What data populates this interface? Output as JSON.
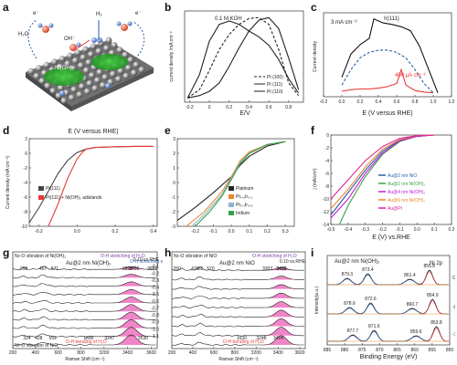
{
  "panel_labels": {
    "a": "a",
    "b": "b",
    "c": "c",
    "d": "d",
    "e": "e",
    "f": "f",
    "g": "g",
    "h": "h",
    "i": "i"
  },
  "panel_a": {
    "labels": [
      "H₂",
      "H₂O",
      "OH⁻",
      "Ni(OH)₂",
      "e⁻",
      "e⁻"
    ]
  },
  "colors": {
    "red": "#e83a36",
    "blue": "#2a5ea8",
    "pink": "#e0239a",
    "purple": "#7b3fa8",
    "green": "#3aa04a",
    "magenta": "#c21dd0",
    "orange": "#e8872c",
    "lightblue": "#8fb3d6",
    "gray": "#777777"
  },
  "chart_data": [
    {
      "id": "b",
      "type": "line",
      "annotation": "0.1 M KOH",
      "xlabel": "E/V",
      "ylabel": "current density /mA cm⁻²",
      "xlim": [
        -0.25,
        0.95
      ],
      "xticks": [
        "-0.2",
        "0",
        "0.2",
        "0.4",
        "0.6",
        "0.8"
      ],
      "series": [
        {
          "name": "Pt (100)",
          "style": "dashed",
          "x": [
            -0.22,
            -0.1,
            0.0,
            0.1,
            0.2,
            0.3,
            0.4,
            0.5,
            0.6,
            0.7,
            0.8,
            0.9
          ],
          "y": [
            0.02,
            0.12,
            0.35,
            0.6,
            0.78,
            0.9,
            0.97,
            0.98,
            0.9,
            0.6,
            0.2,
            0.05
          ]
        },
        {
          "name": "Pt (111)",
          "style": "solid",
          "x": [
            -0.22,
            -0.1,
            0.0,
            0.1,
            0.2,
            0.3,
            0.4,
            0.5,
            0.6,
            0.7,
            0.8,
            0.9
          ],
          "y": [
            0.02,
            0.05,
            0.1,
            0.2,
            0.4,
            0.62,
            0.82,
            0.95,
            0.98,
            0.85,
            0.5,
            0.12
          ]
        },
        {
          "name": "Pt (110)",
          "style": "solid",
          "x": [
            -0.22,
            -0.1,
            0.0,
            0.1,
            0.2,
            0.3,
            0.4,
            0.5,
            0.6,
            0.7,
            0.8,
            0.9
          ],
          "y": [
            0.02,
            0.3,
            0.7,
            0.9,
            0.94,
            0.9,
            0.82,
            0.75,
            0.65,
            0.48,
            0.25,
            0.08
          ]
        }
      ]
    },
    {
      "id": "c",
      "type": "line",
      "title": "Ir(111)",
      "xlabel": "E (V versus RHE)",
      "ylabel": "Current density",
      "xlim": [
        -0.2,
        1.2
      ],
      "xticks": [
        "-0.2",
        "0.0",
        "0.2",
        "0.4",
        "0.6",
        "0.8",
        "1.0",
        "1.2"
      ],
      "annotations": [
        "3 mA cm⁻²",
        "400 μA cm⁻²"
      ],
      "series": [
        {
          "name": "black",
          "color": "#111111",
          "x": [
            0.0,
            0.1,
            0.2,
            0.3,
            0.35,
            0.45,
            0.55,
            0.65,
            0.75,
            0.85,
            0.95,
            1.05
          ],
          "y": [
            0.2,
            0.5,
            0.62,
            0.7,
            0.95,
            0.9,
            0.88,
            0.85,
            0.8,
            0.6,
            0.3,
            0.0
          ]
        },
        {
          "name": "blue dashed",
          "color": "#2a5ea8",
          "x": [
            0.0,
            0.1,
            0.2,
            0.3,
            0.4,
            0.5,
            0.6,
            0.7,
            0.8,
            0.9,
            1.0
          ],
          "y": [
            0.1,
            0.3,
            0.45,
            0.52,
            0.55,
            0.55,
            0.52,
            0.45,
            0.3,
            0.12,
            0.0
          ]
        },
        {
          "name": "red",
          "color": "#e83a36",
          "x": [
            0.0,
            0.1,
            0.2,
            0.3,
            0.4,
            0.5,
            0.6,
            0.65,
            0.7,
            0.8,
            0.9,
            1.0
          ],
          "y": [
            0.02,
            0.04,
            0.05,
            0.05,
            0.06,
            0.08,
            0.12,
            0.3,
            0.1,
            0.03,
            0.01,
            0.0
          ]
        }
      ]
    },
    {
      "id": "d",
      "type": "line",
      "xlabel": "E (V versus RHE)",
      "ylabel": "Current density (mA cm⁻²)",
      "xlim": [
        -0.25,
        0.42
      ],
      "ylim": [
        -10,
        2
      ],
      "xticks": [
        "-0.2",
        "0.0",
        "0.2",
        "0.4"
      ],
      "yticks": [
        "2",
        "0",
        "-2",
        "-4",
        "-6",
        "-8",
        "-10"
      ],
      "series": [
        {
          "name": "Pt(111)",
          "color": "#444444",
          "x": [
            -0.25,
            -0.2,
            -0.15,
            -0.1,
            -0.05,
            0.0,
            0.05,
            0.1,
            0.2,
            0.3,
            0.4
          ],
          "y": [
            -9.5,
            -7.5,
            -5.2,
            -2.8,
            -1.0,
            0.1,
            0.6,
            0.8,
            0.9,
            0.95,
            0.95
          ]
        },
        {
          "name": "Pt(111) + Ni(OH)₂ adislands",
          "color": "#e83a36",
          "x": [
            -0.15,
            -0.1,
            -0.05,
            0.0,
            0.03,
            0.05,
            0.1,
            0.2,
            0.3,
            0.4
          ],
          "y": [
            -10,
            -7,
            -3.5,
            -0.8,
            0.2,
            0.6,
            0.8,
            0.9,
            0.95,
            0.95
          ]
        }
      ]
    },
    {
      "id": "e",
      "type": "line",
      "xlim": [
        -0.3,
        0.35
      ],
      "ylim": [
        -3,
        3
      ],
      "xticks": [
        "-0.2",
        "-0.1",
        "0.0",
        "0.1",
        "0.2",
        "0.3"
      ],
      "yticks": [
        "3",
        "2",
        "1",
        "0",
        "-1",
        "-2",
        "-3"
      ],
      "series": [
        {
          "name": "Platinum",
          "color": "#222222",
          "x": [
            -0.3,
            -0.2,
            -0.1,
            0.0,
            0.05,
            0.1,
            0.2,
            0.3
          ],
          "y": [
            -2.6,
            -1.7,
            -0.7,
            0.4,
            1.2,
            1.8,
            2.5,
            2.8
          ]
        },
        {
          "name": "Pt₀.₉Ir₀.₁",
          "color": "#e8872c",
          "x": [
            -0.25,
            -0.15,
            -0.05,
            0.0,
            0.05,
            0.1,
            0.2,
            0.3
          ],
          "y": [
            -3.0,
            -2.0,
            -0.6,
            0.4,
            1.5,
            2.1,
            2.6,
            2.8
          ]
        },
        {
          "name": "Pt₀.₁Ir₀.₉",
          "color": "#8fb3d6",
          "x": [
            -0.22,
            -0.15,
            -0.05,
            0.0,
            0.05,
            0.1,
            0.2,
            0.3
          ],
          "y": [
            -3.0,
            -2.2,
            -0.8,
            0.3,
            1.4,
            2.0,
            2.6,
            2.8
          ]
        },
        {
          "name": "Iridium",
          "color": "#3aa04a",
          "x": [
            -0.2,
            -0.12,
            -0.05,
            0.0,
            0.05,
            0.1,
            0.2,
            0.3
          ],
          "y": [
            -3.0,
            -2.0,
            -0.9,
            0.2,
            1.3,
            2.0,
            2.6,
            2.8
          ]
        }
      ]
    },
    {
      "id": "f",
      "type": "line",
      "xlabel": "E (V) vs.RHE",
      "ylabel": "j (mA/cm²)",
      "xlim": [
        -0.5,
        0.2
      ],
      "ylim": [
        -14,
        0
      ],
      "xticks": [
        "-0.5",
        "-0.4",
        "-0.3",
        "-0.2",
        "-0.1",
        "0.0",
        "0.1",
        "0.2"
      ],
      "yticks": [
        "0",
        "-2",
        "-4",
        "-6",
        "-8",
        "-10",
        "-12",
        "-14"
      ],
      "series": [
        {
          "name": "Au@2 nm NiO",
          "color": "#2a5ea8",
          "x": [
            -0.5,
            -0.4,
            -0.3,
            -0.2,
            -0.1,
            0.0,
            0.1
          ],
          "y": [
            -12.5,
            -9.0,
            -5.5,
            -2.5,
            -0.8,
            -0.2,
            0.0
          ]
        },
        {
          "name": "Au@2 nm Ni(OH)₂",
          "color": "#3aa04a",
          "x": [
            -0.45,
            -0.4,
            -0.3,
            -0.2,
            -0.1,
            0.0,
            0.1
          ],
          "y": [
            -14.0,
            -11.0,
            -6.5,
            -3.0,
            -1.0,
            -0.2,
            0.0
          ]
        },
        {
          "name": "Au@4 nm Ni(OH)₂",
          "color": "#c21dd0",
          "x": [
            -0.5,
            -0.4,
            -0.3,
            -0.2,
            -0.1,
            0.0,
            0.1
          ],
          "y": [
            -13.0,
            -10.0,
            -6.0,
            -2.8,
            -0.9,
            -0.2,
            0.0
          ]
        },
        {
          "name": "Au@6 nm Ni(OH)₂",
          "color": "#e8872c",
          "x": [
            -0.5,
            -0.4,
            -0.3,
            -0.2,
            -0.1,
            0.0,
            0.1
          ],
          "y": [
            -11.5,
            -8.5,
            -5.0,
            -2.2,
            -0.7,
            -0.1,
            0.0
          ]
        },
        {
          "name": "Au@Pt",
          "color": "#e0239a",
          "x": [
            -0.5,
            -0.4,
            -0.3,
            -0.2,
            -0.1,
            0.0,
            0.1
          ],
          "y": [
            -10.0,
            -7.0,
            -4.0,
            -1.8,
            -0.5,
            -0.1,
            0.0
          ]
        }
      ]
    },
    {
      "id": "g",
      "type": "line",
      "title": "Au@2 nm Ni(OH)₂",
      "xlabel": "Raman Shift (cm⁻¹)",
      "xlim": [
        200,
        3600
      ],
      "xticks": [
        "200",
        "400",
        "600",
        "800",
        "3200",
        "3400",
        "3600"
      ],
      "annotations": [
        "Ni–O vibration of Ni(OH)₂",
        "O-H stretching of H₂O",
        "O-H stretching of Ni(OH)₂",
        "O-H bending of H₂O",
        "Ni–O vibration of NiO",
        "0.10 vs.RHE",
        "-0.1",
        "-0.2",
        "-0.3",
        "-0.4",
        "-0.5",
        "-0.6",
        "-0.7",
        "-0.8",
        "-0.9",
        "-1.0",
        "-1.1"
      ],
      "peaks": [
        "298",
        "467",
        "571",
        "3398",
        "3456",
        "3609",
        "3247",
        "3530",
        "324",
        "428",
        "552",
        "1690"
      ]
    },
    {
      "id": "h",
      "type": "line",
      "title": "Au@2 nm NiO",
      "xlabel": "Raman Shift (cm⁻¹)",
      "xlim": [
        200,
        3600
      ],
      "xticks": [
        "200",
        "400",
        "600",
        "800",
        "3200",
        "3400",
        "3600"
      ],
      "annotations": [
        "Ni–O vibration of NiO",
        "O-H stretching of H₂O",
        "O-H bending of H₂O",
        "0.10 vs.RHE"
      ],
      "peaks": [
        "250",
        "421",
        "465",
        "570",
        "3303",
        "3430",
        "3432",
        "1630",
        "3404",
        "3248"
      ]
    },
    {
      "id": "i",
      "type": "line",
      "title": "Au@2 nm Ni(OH)₂",
      "subtitle": "Ni 2p",
      "xlabel": "Binding Energy (eV)",
      "ylabel": "Intensity(a.u.)",
      "xlim": [
        885,
        850
      ],
      "xticks": [
        "885",
        "880",
        "875",
        "870",
        "865",
        "860",
        "855",
        "850"
      ],
      "conditions": [
        "OCP",
        "-0.6 V",
        "-1.1 V"
      ],
      "peaks": [
        [
          "879.3",
          "873.4",
          "861.4",
          "855.8"
        ],
        [
          "878.6",
          "872.6",
          "860.7",
          "854.9"
        ],
        [
          "877.7",
          "871.6",
          "859.6",
          "853.8"
        ]
      ]
    }
  ]
}
